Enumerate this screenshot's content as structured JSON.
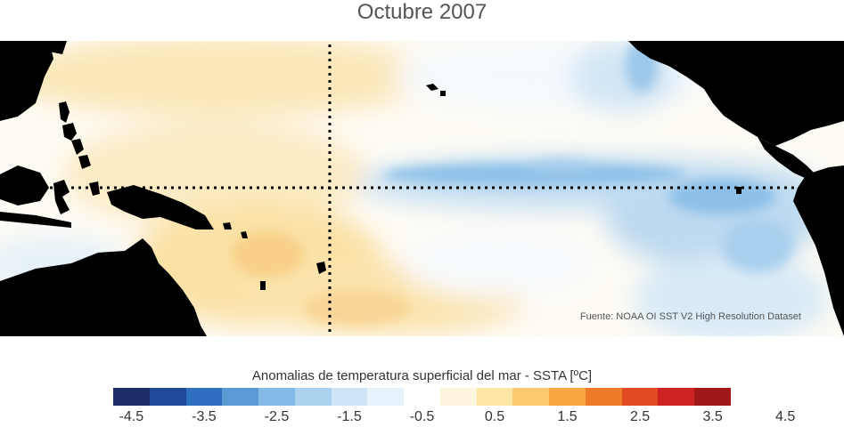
{
  "title": "Octubre 2007",
  "source": "Fuente: NOAA OI SST V2 High Resolution Dataset",
  "legend": {
    "title": "Anomalias de temperatura superficial del mar - SSTA  [ºC]",
    "ticks": [
      "-4.5",
      "-3.5",
      "-2.5",
      "-1.5",
      "-0.5",
      "0.5",
      "1.5",
      "2.5",
      "3.5",
      "4.5"
    ],
    "colors": [
      "#1c2f66",
      "#1f4a9a",
      "#2f6fc0",
      "#5a9bd6",
      "#84bbe6",
      "#abd3f0",
      "#cde5f6",
      "#e7f3fa",
      "#ffffff",
      "#fef6dc",
      "#fde5a6",
      "#fbc970",
      "#f8a642",
      "#ef7b2a",
      "#e04b22",
      "#cc2222",
      "#a01818"
    ]
  }
}
